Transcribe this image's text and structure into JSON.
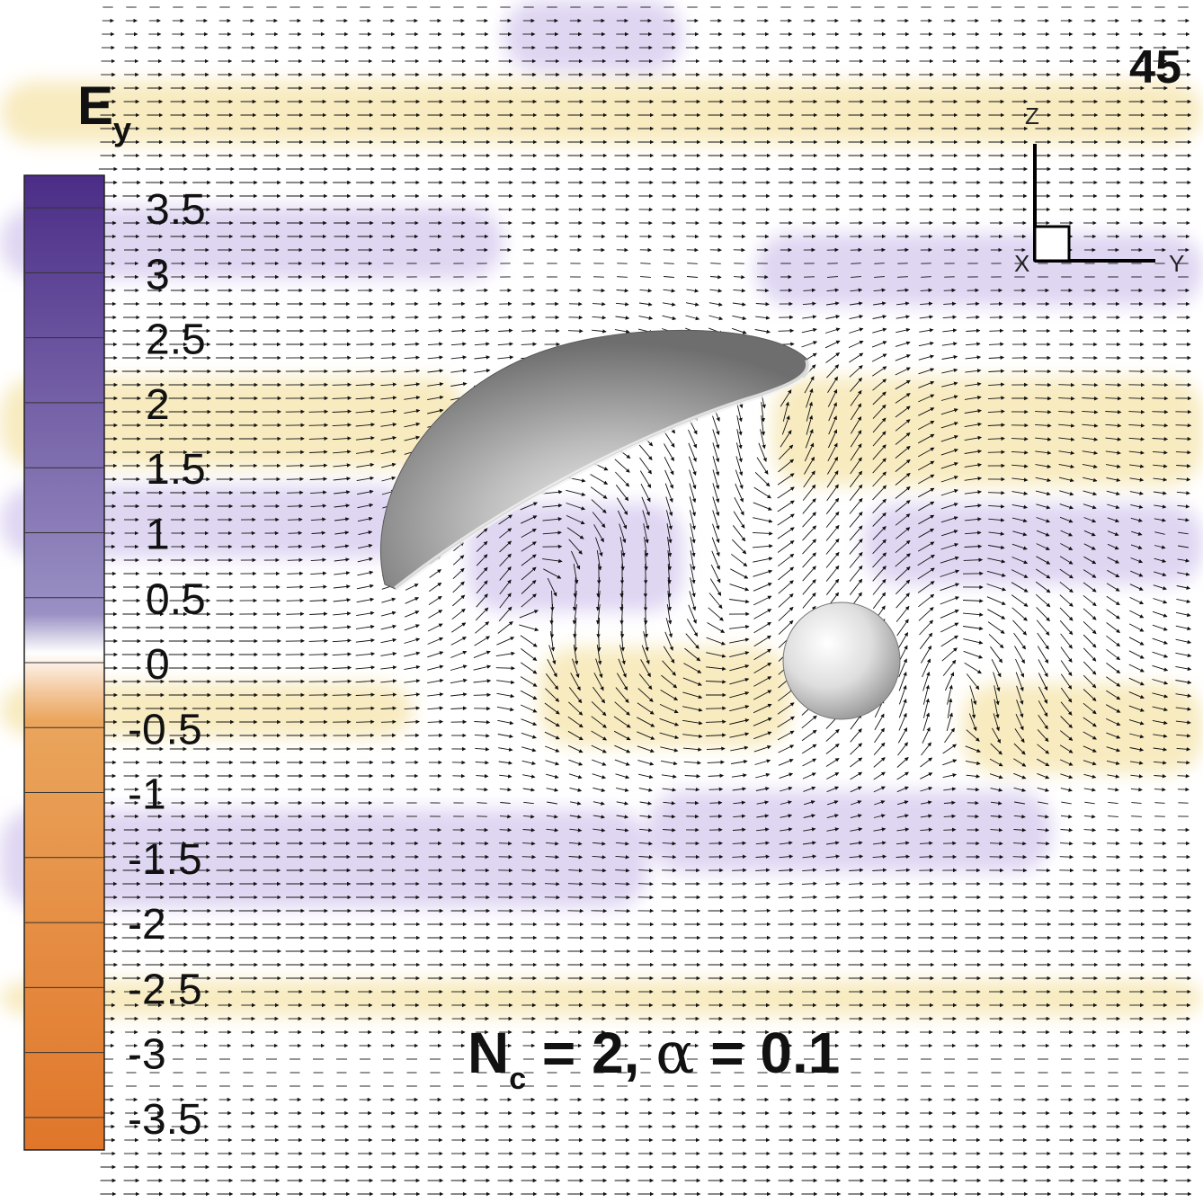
{
  "frame_label": "45",
  "colorbar": {
    "variable": "E",
    "subscript": "y",
    "ticks": [
      "3.5",
      "3",
      "2.5",
      "2",
      "1.5",
      "1",
      "0.5",
      "0",
      "-0.5",
      "-1",
      "-1.5",
      "-2",
      "-2.5",
      "-3",
      "-3.5"
    ],
    "range": [
      -3.75,
      3.75
    ],
    "color_positive": "#5a3c94",
    "color_zero": "#ffffff",
    "color_negative": "#e0762a"
  },
  "axes_triad": {
    "z": "Z",
    "y": "Y",
    "x": "X"
  },
  "annotation": {
    "n": "N",
    "n_sub": "c",
    "text": " = 2, ",
    "alpha": "α",
    "alpha_text": " = 0.1"
  },
  "field_colors": {
    "positive_band": "#d9cff0",
    "negative_band": "#f7e7b5"
  },
  "objects": [
    "ellipsoidal-cap",
    "sphere"
  ]
}
